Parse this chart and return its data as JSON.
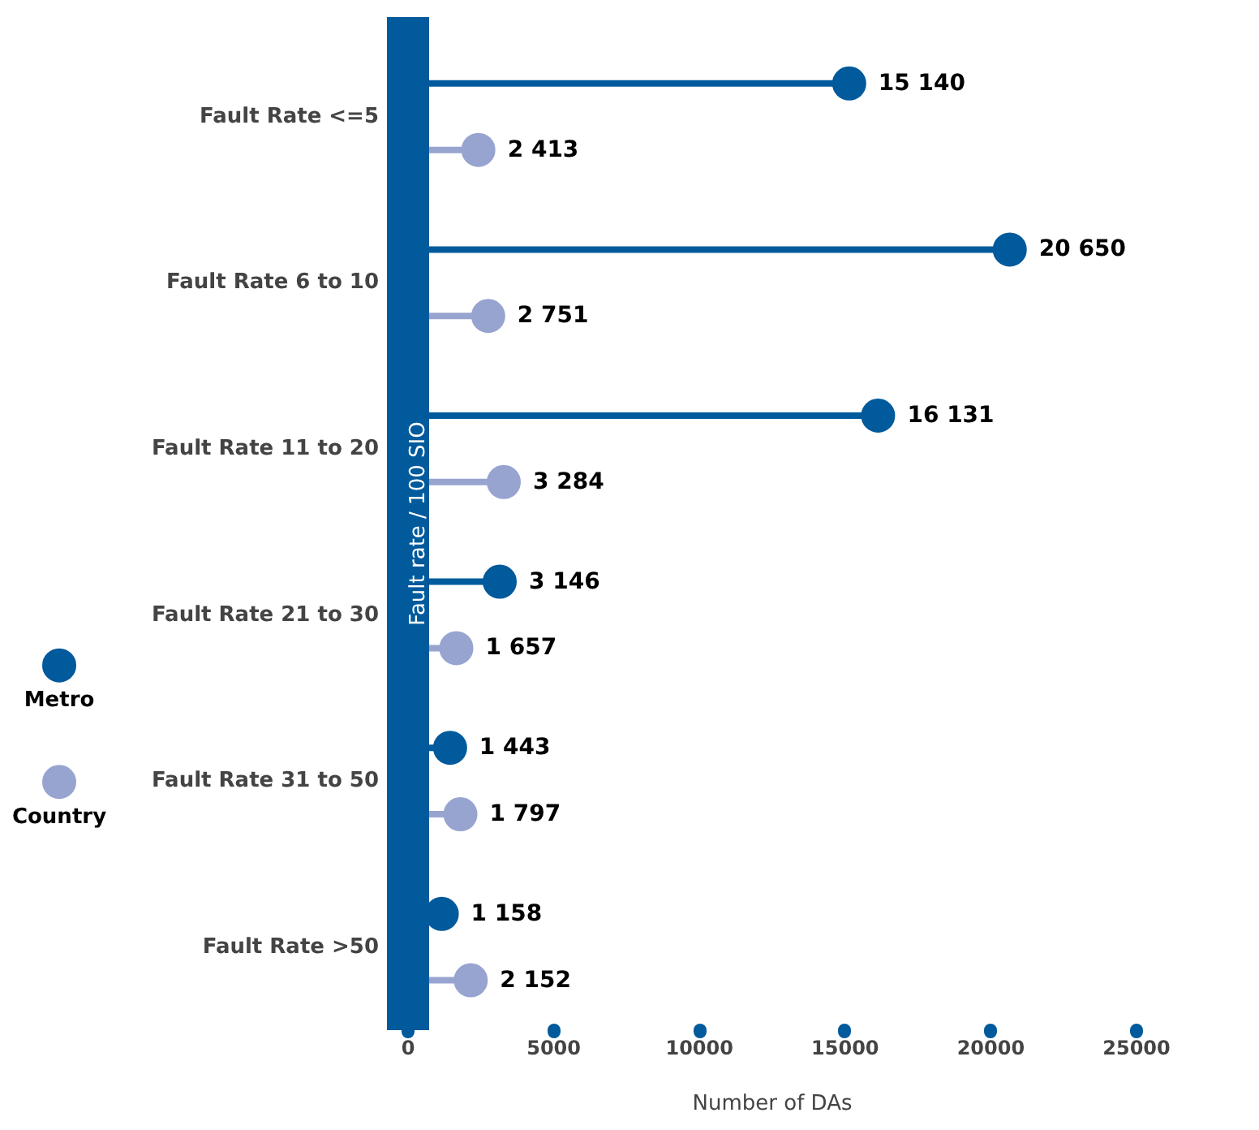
{
  "chart_data": {
    "type": "lollipop",
    "orientation": "horizontal",
    "ylabel": "Fault rate / 100 SIO",
    "xlabel": "Number of DAs",
    "categories": [
      "Fault Rate <=5",
      "Fault Rate 6 to 10",
      "Fault Rate 11 to 20",
      "Fault Rate 21 to 30",
      "Fault Rate 31 to 50",
      "Fault Rate >50"
    ],
    "series": [
      {
        "name": "Metro",
        "color": "#005a9c",
        "values": [
          15140,
          20650,
          16131,
          3146,
          1443,
          1158
        ]
      },
      {
        "name": "Country",
        "color": "#98a4d0",
        "values": [
          2413,
          2751,
          3284,
          1657,
          1797,
          2152
        ]
      }
    ],
    "xlim": [
      0,
      25000
    ],
    "xticks": [
      0,
      5000,
      10000,
      15000,
      20000,
      25000
    ],
    "data_labels": true,
    "marker": "circle",
    "legend": "bottom left",
    "grid": false
  }
}
